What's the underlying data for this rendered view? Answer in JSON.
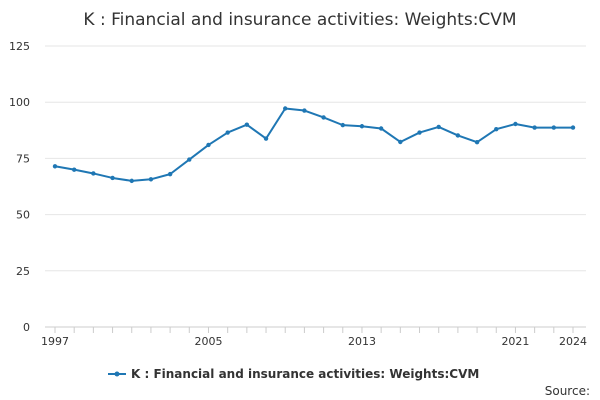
{
  "chart_data": {
    "type": "line",
    "title": "K : Financial and insurance activities: Weights:CVM",
    "xlabel": "",
    "ylabel": "",
    "x": [
      1997,
      1998,
      1999,
      2000,
      2001,
      2002,
      2003,
      2004,
      2005,
      2006,
      2007,
      2008,
      2009,
      2010,
      2011,
      2012,
      2013,
      2014,
      2015,
      2016,
      2017,
      2018,
      2019,
      2020,
      2021,
      2022,
      2023,
      2024
    ],
    "series": [
      {
        "name": "K : Financial and insurance activities: Weights:CVM",
        "color": "#1f77b4",
        "values": [
          71.5,
          70.0,
          68.3,
          66.3,
          65.0,
          65.7,
          68.0,
          74.5,
          81.0,
          86.5,
          90.0,
          83.8,
          97.2,
          96.3,
          93.2,
          89.8,
          89.3,
          88.3,
          82.3,
          86.5,
          89.0,
          85.2,
          82.2,
          88.0,
          90.3,
          88.7,
          88.7,
          88.7
        ]
      }
    ],
    "ylim": [
      0,
      125
    ],
    "xlim": [
      1997,
      2024
    ],
    "yticks": [
      0,
      25,
      50,
      75,
      100,
      125
    ],
    "xticks_labeled": [
      1997,
      2005,
      2013,
      2021,
      2024
    ],
    "grid": true,
    "legend": "bottom-center",
    "source_label": "Source:"
  }
}
